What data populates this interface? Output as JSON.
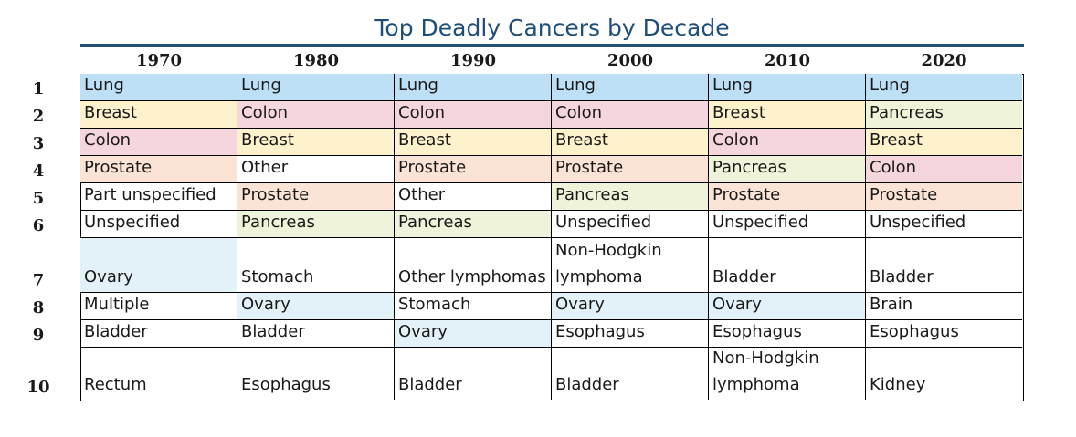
{
  "title": "Top Deadly Cancers by Decade",
  "years": [
    "1970",
    "1980",
    "1990",
    "2000",
    "2010",
    "2020"
  ],
  "ranks": [
    "1",
    "2",
    "3",
    "4",
    "5",
    "6",
    "7",
    "8",
    "9",
    "10"
  ],
  "colors": {
    "Lung": "#bde0f6",
    "Breast": "#fdf2cc",
    "Colon": "#f4d6dc",
    "Prostate": "#fbe4d6",
    "Pancreas": "#eef3d9",
    "Ovary": "#e3f2f9"
  },
  "rows": [
    [
      "Lung",
      "Lung",
      "Lung",
      "Lung",
      "Lung",
      "Lung"
    ],
    [
      "Breast",
      "Colon",
      "Colon",
      "Colon",
      "Breast",
      "Pancreas"
    ],
    [
      "Colon",
      "Breast",
      "Breast",
      "Breast",
      "Colon",
      "Breast"
    ],
    [
      "Prostate",
      "Other",
      "Prostate",
      "Prostate",
      "Pancreas",
      "Colon"
    ],
    [
      "Part unspecified",
      "Prostate",
      "Other",
      "Pancreas",
      "Prostate",
      "Prostate"
    ],
    [
      "Unspecified",
      "Pancreas",
      "Pancreas",
      "Unspecified",
      "Unspecified",
      "Unspecified"
    ],
    [
      "Ovary",
      "Stomach",
      "Other lymphomas",
      "Non-Hodgkin lymphoma",
      "Bladder",
      "Bladder"
    ],
    [
      "Multiple",
      "Ovary",
      "Stomach",
      "Ovary",
      "Ovary",
      "Brain"
    ],
    [
      "Bladder",
      "Bladder",
      "Ovary",
      "Esophagus",
      "Esophagus",
      "Esophagus"
    ],
    [
      "Rectum",
      "Esophagus",
      "Bladder",
      "Bladder",
      "Non-Hodgkin lymphoma",
      "Kidney"
    ]
  ]
}
